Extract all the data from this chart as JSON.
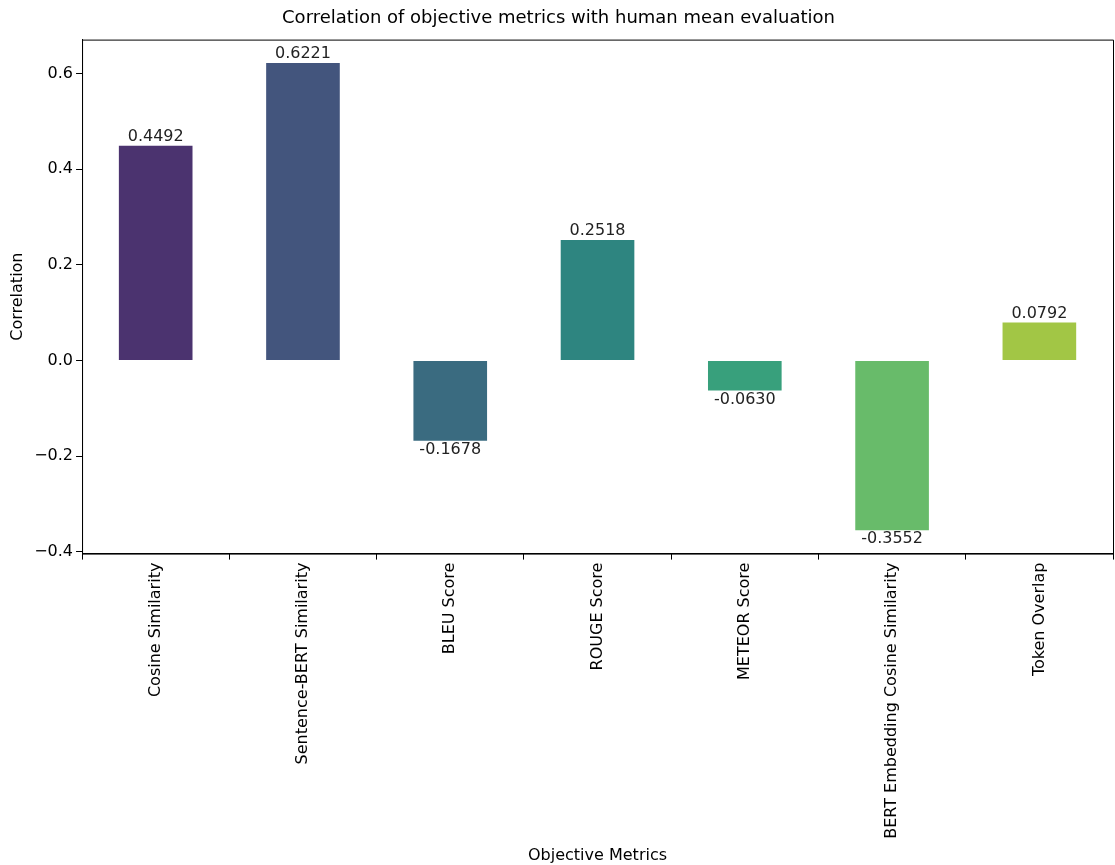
{
  "chart_data": {
    "type": "bar",
    "title": "Correlation of objective metrics with human mean evaluation",
    "xlabel": "Objective Metrics",
    "ylabel": "Correlation",
    "categories": [
      "Cosine Similarity",
      "Sentence-BERT Similarity",
      "BLEU Score",
      "ROUGE Score",
      "METEOR Score",
      "BERT Embedding Cosine Similarity",
      "Token Overlap"
    ],
    "values": [
      0.4492,
      0.6221,
      -0.1678,
      0.2518,
      -0.063,
      -0.3552,
      0.0792
    ],
    "value_labels": [
      "0.4492",
      "0.6221",
      "-0.1678",
      "0.2518",
      "-0.0630",
      "-0.3552",
      "0.0792"
    ],
    "colors": [
      "#4b336f",
      "#43557d",
      "#3a6b80",
      "#2e8580",
      "#38a07c",
      "#68bb6a",
      "#a2c645"
    ],
    "ylim": [
      -0.404,
      0.671
    ],
    "yticks": [
      {
        "value": -0.4,
        "label": "−0.4"
      },
      {
        "value": -0.2,
        "label": "−0.2"
      },
      {
        "value": 0,
        "label": "0.0"
      },
      {
        "value": 0.2,
        "label": "0.2"
      },
      {
        "value": 0.4,
        "label": "0.4"
      },
      {
        "value": 0.6,
        "label": "0.6"
      }
    ],
    "grid": false,
    "legend": false
  }
}
